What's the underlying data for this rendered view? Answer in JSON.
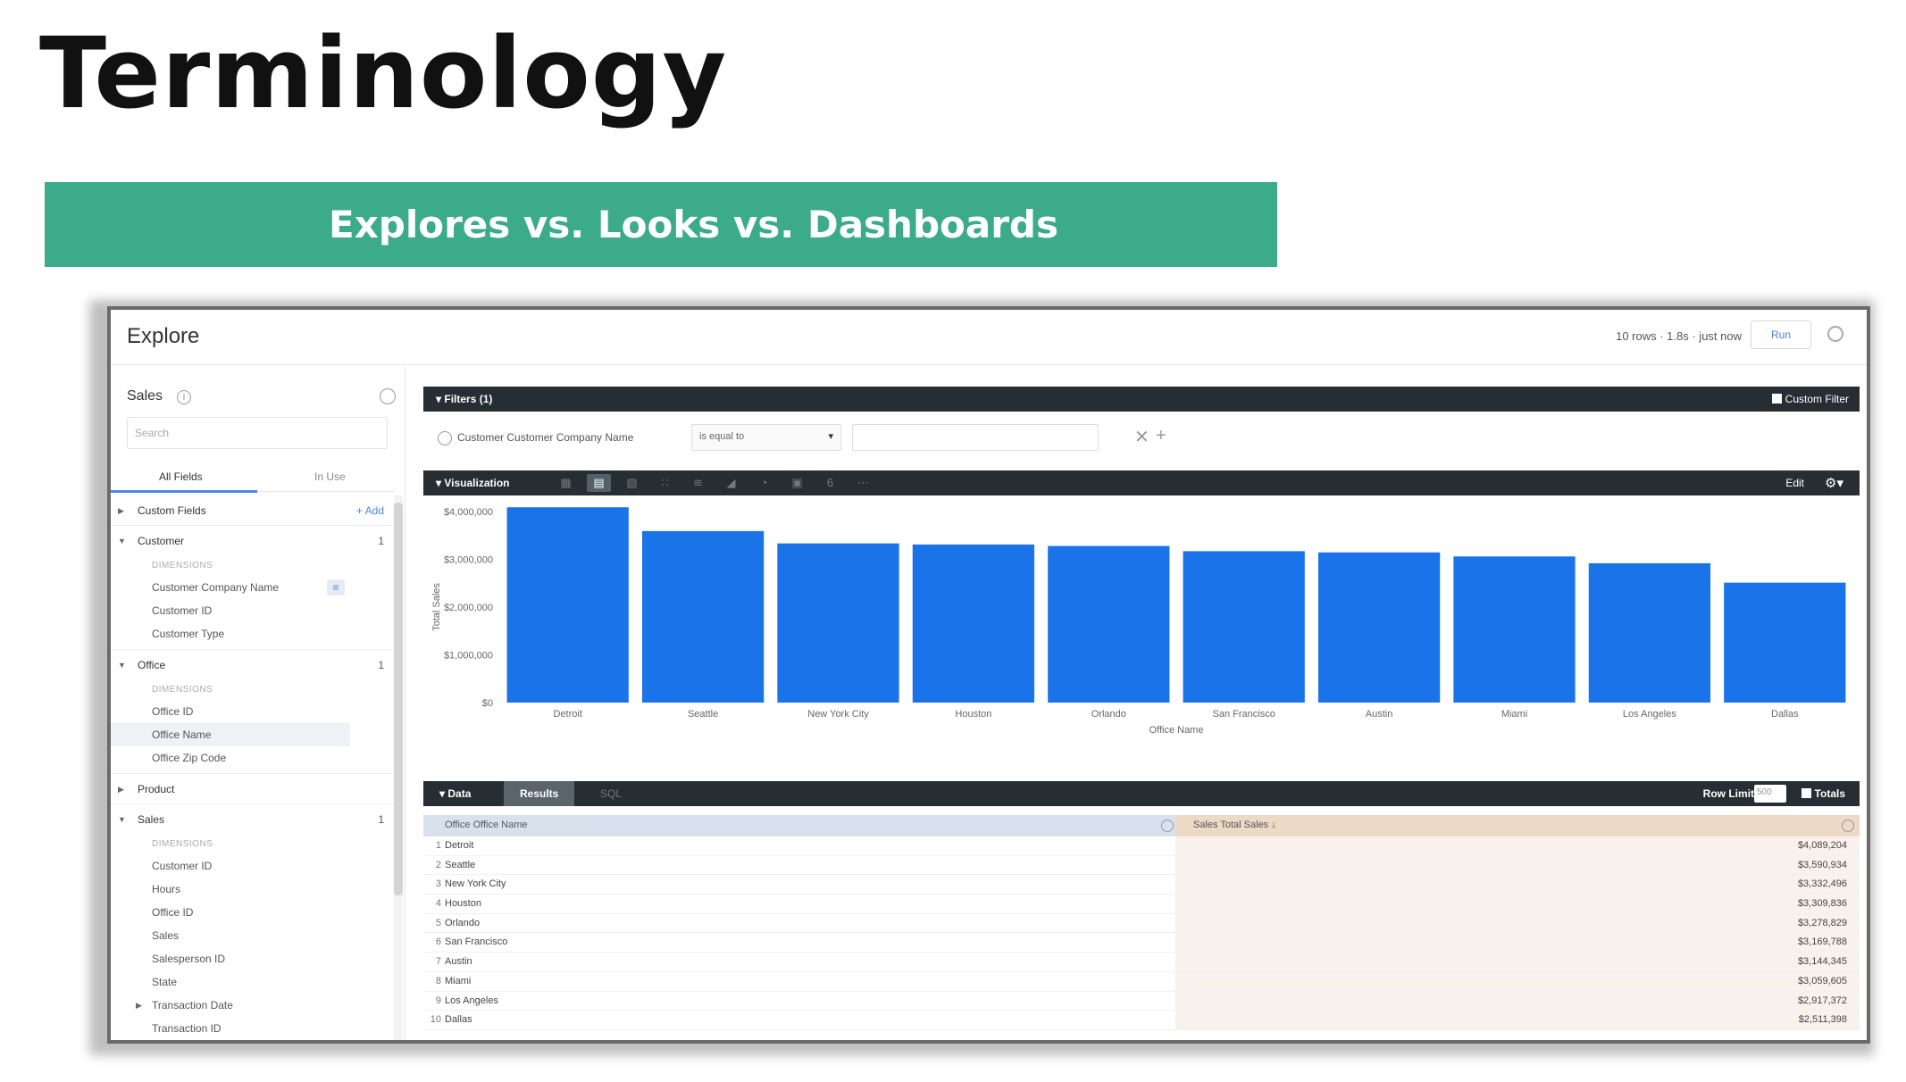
{
  "slide": {
    "title": "Terminology",
    "banner": "Explores vs. Looks vs. Dashboards"
  },
  "header": {
    "title": "Explore",
    "meta": "10 rows · 1.8s · just now",
    "run_label": "Run"
  },
  "sidebar": {
    "model": "Sales",
    "search_placeholder": "Search",
    "tabs": [
      "All Fields",
      "In Use"
    ],
    "groups": {
      "custom_fields": {
        "name": "Custom Fields",
        "add": "+ Add"
      },
      "customer": {
        "name": "Customer",
        "count": "1",
        "dim_label": "DIMENSIONS",
        "fields": [
          "Customer Company Name",
          "Customer ID",
          "Customer Type"
        ]
      },
      "office": {
        "name": "Office",
        "count": "1",
        "dim_label": "DIMENSIONS",
        "fields": [
          "Office ID",
          "Office Name",
          "Office Zip Code"
        ]
      },
      "product": {
        "name": "Product"
      },
      "sales": {
        "name": "Sales",
        "count": "1",
        "dim_label": "DIMENSIONS",
        "fields": [
          "Customer ID",
          "Hours",
          "Office ID",
          "Sales",
          "Salesperson ID",
          "State",
          "Transaction Date",
          "Transaction ID"
        ]
      }
    }
  },
  "filters": {
    "label": "Filters (1)",
    "custom_filter": "Custom Filter",
    "field": "Customer Customer Company Name",
    "operator": "is equal to",
    "value": ""
  },
  "visualization": {
    "label": "Visualization",
    "edit": "Edit",
    "icons": [
      "table-icon",
      "bar-chart-icon",
      "column-chart-icon",
      "scatter-icon",
      "line-icon",
      "area-icon",
      "pie-icon",
      "map-icon",
      "single-value-icon",
      "more-icon"
    ]
  },
  "chart_data": {
    "type": "bar",
    "categories": [
      "Detroit",
      "Seattle",
      "New York City",
      "Houston",
      "Orlando",
      "San Francisco",
      "Austin",
      "Miami",
      "Los Angeles",
      "Dallas"
    ],
    "values": [
      4089204,
      3590934,
      3332496,
      3309836,
      3278829,
      3169788,
      3144345,
      3059605,
      2917372,
      2511398
    ],
    "xlabel": "Office Name",
    "ylabel": "Total Sales",
    "ylim": [
      0,
      4000000
    ],
    "yticks": [
      "$0",
      "$1,000,000",
      "$2,000,000",
      "$3,000,000",
      "$4,000,000"
    ],
    "bar_color": "#1a73e8"
  },
  "data_panel": {
    "label": "Data",
    "tabs": [
      "Results",
      "SQL"
    ],
    "row_limit_label": "Row Limit",
    "row_limit_value": "500",
    "totals_label": "Totals",
    "col_dimension": "Office Office Name",
    "col_measure": "Sales Total Sales ↓",
    "rows": [
      {
        "n": "1",
        "name": "Detroit",
        "value": "$4,089,204"
      },
      {
        "n": "2",
        "name": "Seattle",
        "value": "$3,590,934"
      },
      {
        "n": "3",
        "name": "New York City",
        "value": "$3,332,496"
      },
      {
        "n": "4",
        "name": "Houston",
        "value": "$3,309,836"
      },
      {
        "n": "5",
        "name": "Orlando",
        "value": "$3,278,829"
      },
      {
        "n": "6",
        "name": "San Francisco",
        "value": "$3,169,788"
      },
      {
        "n": "7",
        "name": "Austin",
        "value": "$3,144,345"
      },
      {
        "n": "8",
        "name": "Miami",
        "value": "$3,059,605"
      },
      {
        "n": "9",
        "name": "Los Angeles",
        "value": "$2,917,372"
      },
      {
        "n": "10",
        "name": "Dallas",
        "value": "$2,511,398"
      }
    ]
  }
}
